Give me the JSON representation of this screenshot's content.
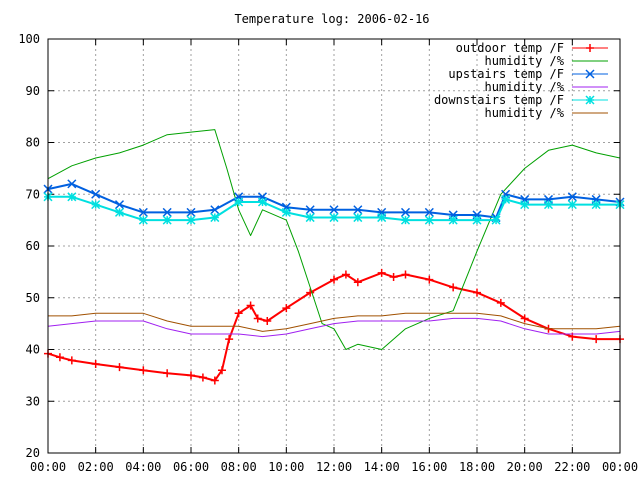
{
  "chart_data": {
    "type": "line",
    "title": "Temperature log: 2006-02-16",
    "xlabel": "",
    "ylabel": "",
    "ylim": [
      20,
      100
    ],
    "y_ticks": [
      "20",
      "30",
      "40",
      "50",
      "60",
      "70",
      "80",
      "90",
      "100"
    ],
    "xlim": [
      0,
      24
    ],
    "x_ticks": [
      "00:00",
      "02:00",
      "04:00",
      "06:00",
      "08:00",
      "10:00",
      "12:00",
      "14:00",
      "16:00",
      "18:00",
      "20:00",
      "22:00",
      "00:00"
    ],
    "grid": true,
    "legend_position": "top-right",
    "series": [
      {
        "name": "outdoor temp /F",
        "color": "#ff0000",
        "marker": "plus",
        "x": [
          0,
          0.5,
          1,
          2,
          3,
          4,
          5,
          6,
          6.5,
          7,
          7.3,
          7.6,
          8,
          8.5,
          8.8,
          9.2,
          10,
          11,
          12,
          12.5,
          13,
          14,
          14.5,
          15,
          16,
          17,
          18,
          19,
          20,
          21,
          22,
          23,
          24
        ],
        "values": [
          39.2,
          38.5,
          37.9,
          37.2,
          36.6,
          36.0,
          35.4,
          35.0,
          34.6,
          34.0,
          36.0,
          42.0,
          47.0,
          48.5,
          46.0,
          45.5,
          48.0,
          51.0,
          53.5,
          54.5,
          53.0,
          54.8,
          54.0,
          54.5,
          53.5,
          52.0,
          51.0,
          49.0,
          46.0,
          44.0,
          42.5,
          42.0,
          42.0
        ]
      },
      {
        "name": "humidity /%",
        "color": "#00a000",
        "marker": "none",
        "x": [
          0,
          1,
          2,
          3,
          4,
          5,
          6,
          7,
          7.5,
          8,
          8.5,
          9,
          10,
          10.5,
          11,
          11.5,
          12,
          12.5,
          13,
          14,
          15,
          16,
          17,
          18,
          19,
          20,
          21,
          22,
          23,
          24
        ],
        "values": [
          73,
          75.5,
          77,
          78,
          79.5,
          81.5,
          82,
          82.5,
          75,
          67,
          62,
          67,
          65,
          59,
          52,
          45,
          44,
          40,
          41,
          40,
          44,
          46,
          47.5,
          59,
          70,
          75,
          78.5,
          79.5,
          78,
          77
        ]
      },
      {
        "name": "upstairs temp /F",
        "color": "#0060e0",
        "marker": "x",
        "x": [
          0,
          1,
          2,
          3,
          4,
          5,
          6,
          7,
          8,
          9,
          10,
          11,
          12,
          13,
          14,
          15,
          16,
          17,
          18,
          18.8,
          19.2,
          20,
          21,
          22,
          23,
          24
        ],
        "values": [
          71,
          72,
          70,
          68,
          66.5,
          66.5,
          66.5,
          67,
          69.5,
          69.5,
          67.5,
          67,
          67,
          67,
          66.5,
          66.5,
          66.5,
          66,
          66,
          65.5,
          70,
          69,
          69,
          69.5,
          69,
          68.5
        ]
      },
      {
        "name": "humidity /%",
        "color": "#a020f0",
        "marker": "none",
        "x": [
          0,
          1,
          2,
          3,
          4,
          5,
          6,
          7,
          8,
          9,
          10,
          11,
          12,
          13,
          14,
          15,
          16,
          17,
          18,
          19,
          20,
          21,
          22,
          23,
          24
        ],
        "values": [
          44.5,
          45,
          45.5,
          45.5,
          45.5,
          44,
          43,
          43,
          43,
          42.5,
          43,
          44,
          45,
          45.5,
          45.5,
          45.5,
          45.5,
          46,
          46,
          45.5,
          44,
          43,
          43,
          43,
          43.5
        ]
      },
      {
        "name": "downstairs temp /F",
        "color": "#00e0e0",
        "marker": "star",
        "x": [
          0,
          1,
          2,
          3,
          4,
          5,
          6,
          7,
          8,
          9,
          10,
          11,
          12,
          13,
          14,
          15,
          16,
          17,
          18,
          18.8,
          19.2,
          20,
          21,
          22,
          23,
          24
        ],
        "values": [
          69.5,
          69.5,
          68,
          66.5,
          65,
          65,
          65,
          65.5,
          68.5,
          68.5,
          66.5,
          65.5,
          65.5,
          65.5,
          65.5,
          65,
          65,
          65,
          65,
          65,
          69,
          68,
          68,
          68,
          68,
          68
        ]
      },
      {
        "name": "humidity /%",
        "color": "#a05000",
        "marker": "none",
        "x": [
          0,
          1,
          2,
          3,
          4,
          5,
          6,
          7,
          8,
          9,
          10,
          11,
          12,
          13,
          14,
          15,
          16,
          17,
          18,
          19,
          20,
          21,
          22,
          23,
          24
        ],
        "values": [
          46.5,
          46.5,
          47,
          47,
          47,
          45.5,
          44.5,
          44.5,
          44.5,
          43.5,
          44,
          45,
          46,
          46.5,
          46.5,
          47,
          47,
          47,
          47,
          46.5,
          45,
          44,
          44,
          44,
          44.5
        ]
      }
    ]
  }
}
